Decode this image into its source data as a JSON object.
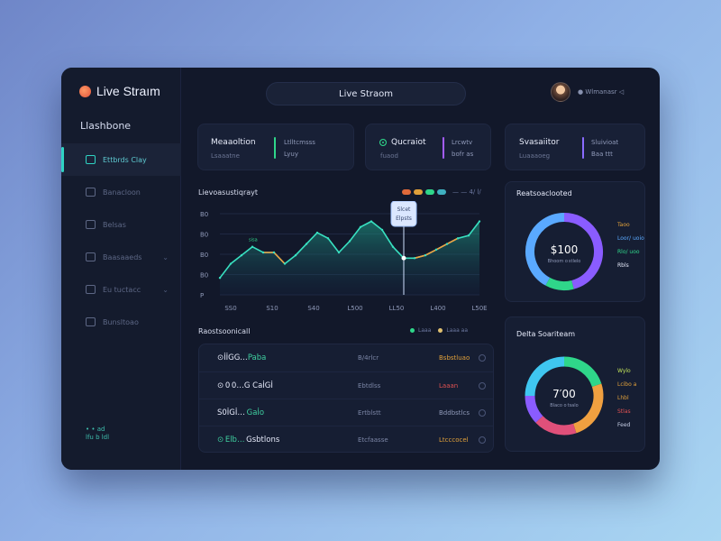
{
  "app": {
    "brand": "Live Straım",
    "section": "Llashbone",
    "title": "Live Straom",
    "user": "● Wlmanasr ◁"
  },
  "nav": {
    "items": [
      {
        "label": "Ettbrds Clay",
        "active": true
      },
      {
        "label": "Banacloon"
      },
      {
        "label": "Belsas"
      },
      {
        "label": "Baasaaeds"
      },
      {
        "label": "Eu tuctacc"
      },
      {
        "label": "Bunsltoao"
      }
    ],
    "footer": [
      "• • ad",
      "lfu b ldl"
    ]
  },
  "stats": [
    {
      "label": "Meaaoltion",
      "sub": "Lsaaatne",
      "val1": "Ltlltcmsss",
      "val2": "Lyuy",
      "bar": "#2fd68a"
    },
    {
      "label": "Qucraiot",
      "sub": "fuaod",
      "val1": "Lrcwtv",
      "val2": "bofr as",
      "bar": "#a35cff"
    },
    {
      "label": "Svasaiitor",
      "sub": "Luaaaoeg",
      "val1": "Sluivioat",
      "val2": "Baa ttt",
      "bar": "#8a6bff"
    }
  ],
  "chart": {
    "title": "Lievoasustiqrayt",
    "legend_text": "— — 4∕ l∕",
    "tooltip_line1": "Slcet",
    "tooltip_line2": "Elpsts",
    "peak_label": "sisa"
  },
  "chart_data": {
    "type": "line",
    "ytick_labels": [
      "B0",
      "B0",
      "B0",
      "B0",
      "P"
    ],
    "xtick_labels": [
      "SS0",
      "S10",
      "S40",
      "L500",
      "LL50",
      "L400",
      "L50E"
    ],
    "series": [
      {
        "values": [
          12,
          22,
          28,
          34,
          30,
          30,
          22,
          28,
          36,
          44,
          40,
          30,
          38,
          48,
          52,
          46,
          34,
          26,
          26,
          28,
          32,
          36,
          40,
          42,
          52
        ]
      }
    ],
    "highlight_index": 17
  },
  "table": {
    "title": "Raostsoonicall",
    "legend": [
      "Laaa",
      "Laaa aa"
    ],
    "rows": [
      {
        "id": "⊙İİGG…",
        "tag": "Paba",
        "mid": "B/4rlcr",
        "amt": "Bsbstluao",
        "amt_color": "#e0a03a"
      },
      {
        "id": "⊙ 0 0…",
        "tag": "G CaİGİ",
        "mid": "Ebtdlss",
        "amt": "Laaan",
        "amt_color": "#e05252"
      },
      {
        "id": "S0İGİ…",
        "tag": " Gaİo",
        "mid": "Ertblstt",
        "amt": "Bddbstlcs",
        "amt_color": "#8f99b8"
      },
      {
        "id": "⊙ Elb…",
        "tag": " Gsbtlons",
        "mid": "Etcfaasse",
        "amt": "Ltcccocel",
        "amt_color": "#e0a03a"
      }
    ]
  },
  "donuts": [
    {
      "title": "Reatsoaclooted",
      "center_value": "$100",
      "center_sub": "Bhoom o stlelo",
      "legend": [
        {
          "text": "Taoo",
          "color": "#e0a03a"
        },
        {
          "text": "Loor/ uoio",
          "color": "#5aa9ff"
        },
        {
          "text": "Rlo/ uoo",
          "color": "#2fd68a"
        },
        {
          "text": "Rbls",
          "color": "#e6eafa"
        }
      ],
      "segments": [
        {
          "value": 46,
          "color": "#8a5cff"
        },
        {
          "value": 12,
          "color": "#2fd68a"
        },
        {
          "value": 42,
          "color": "#5aa9ff"
        }
      ]
    },
    {
      "title": "Delta Soariteam",
      "center_value": "7′00",
      "center_sub": "Blaco o tsalo",
      "legend": [
        {
          "text": "Wylo",
          "color": "#c2e35a"
        },
        {
          "text": "Lcibo a Lhbl",
          "color": "#e0a03a"
        },
        {
          "text": "Stlas",
          "color": "#e05252"
        },
        {
          "text": "Feed",
          "color": "#c7cfe6"
        }
      ],
      "segments": [
        {
          "value": 20,
          "color": "#2fd68a"
        },
        {
          "value": 25,
          "color": "#f0a040"
        },
        {
          "value": 18,
          "color": "#e0507a"
        },
        {
          "value": 12,
          "color": "#8a5cff"
        },
        {
          "value": 25,
          "color": "#3fc6f0"
        }
      ]
    }
  ],
  "colors": {
    "accent": "#2fd3c3",
    "line": "#38e0c0",
    "line_alt": "#f0a040"
  }
}
